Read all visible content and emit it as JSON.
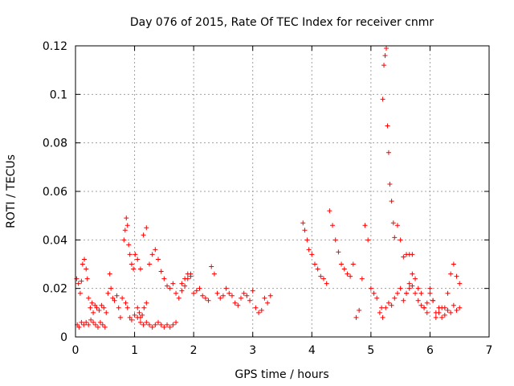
{
  "chart_data": {
    "type": "scatter",
    "title": "Day 076 of 2015, Rate Of TEC Index for receiver cnmr",
    "xlabel": "GPS time / hours",
    "ylabel": "ROTI / TECUs",
    "xlim": [
      0,
      7
    ],
    "ylim": [
      0,
      0.12
    ],
    "xticks": [
      "0",
      "1",
      "2",
      "3",
      "4",
      "5",
      "6",
      "7"
    ],
    "yticks": [
      "0",
      "0.02",
      "0.04",
      "0.06",
      "0.08",
      "0.1",
      "0.12"
    ],
    "grid": true,
    "marker": "+",
    "color": "#ff0000",
    "series": [
      {
        "name": "ROTI",
        "x": [
          0.02,
          0.05,
          0.08,
          0.1,
          0.12,
          0.15,
          0.18,
          0.2,
          0.22,
          0.25,
          0.28,
          0.3,
          0.33,
          0.36,
          0.4,
          0.44,
          0.48,
          0.52,
          0.03,
          0.06,
          0.1,
          0.14,
          0.18,
          0.22,
          0.26,
          0.3,
          0.34,
          0.38,
          0.42,
          0.46,
          0.5,
          0.55,
          0.58,
          0.6,
          0.63,
          0.66,
          0.7,
          0.73,
          0.76,
          0.79,
          0.82,
          0.84,
          0.86,
          0.88,
          0.9,
          0.92,
          0.95,
          0.98,
          1.01,
          1.05,
          1.1,
          1.15,
          1.2,
          1.05,
          1.08,
          1.1,
          1.13,
          1.16,
          1.2,
          1.25,
          1.3,
          1.35,
          1.4,
          1.45,
          1.5,
          1.55,
          1.6,
          1.65,
          1.7,
          1.75,
          1.8,
          1.85,
          1.9,
          1.95,
          0.85,
          0.88,
          0.92,
          0.95,
          1.0,
          1.05,
          1.1,
          1.15,
          1.2,
          1.25,
          1.3,
          1.35,
          1.4,
          1.45,
          1.5,
          1.55,
          1.6,
          1.65,
          1.7,
          1.8,
          1.85,
          1.9,
          1.95,
          2.0,
          2.05,
          2.1,
          2.15,
          2.2,
          2.25,
          2.3,
          2.35,
          2.4,
          2.45,
          2.5,
          2.55,
          2.6,
          2.65,
          2.7,
          2.75,
          2.8,
          2.85,
          2.9,
          2.95,
          3.0,
          3.05,
          3.1,
          3.15,
          3.2,
          3.25,
          3.3,
          3.85,
          3.88,
          3.92,
          3.95,
          4.0,
          4.05,
          4.1,
          4.15,
          4.2,
          4.25,
          4.3,
          4.35,
          4.4,
          4.45,
          4.5,
          4.55,
          4.6,
          4.65,
          4.7,
          4.75,
          4.8,
          4.85,
          4.9,
          4.95,
          5.0,
          5.05,
          5.1,
          5.15,
          5.18,
          5.2,
          5.22,
          5.24,
          5.26,
          5.28,
          5.3,
          5.32,
          5.35,
          5.38,
          5.4,
          5.45,
          5.5,
          5.55,
          5.6,
          5.65,
          5.7,
          5.2,
          5.25,
          5.3,
          5.35,
          5.4,
          5.45,
          5.5,
          5.55,
          5.6,
          5.65,
          5.7,
          5.75,
          5.8,
          5.85,
          5.9,
          5.95,
          6.0,
          6.05,
          6.1,
          6.15,
          6.2,
          6.25,
          6.3,
          6.35,
          6.4,
          6.45,
          6.5,
          5.6,
          5.65,
          5.7,
          5.75,
          5.8,
          5.85,
          5.9,
          5.95,
          6.0,
          6.05,
          6.1,
          6.15,
          6.2,
          6.25,
          6.3,
          6.35,
          6.4,
          6.45,
          6.5
        ],
        "y": [
          0.024,
          0.022,
          0.018,
          0.023,
          0.03,
          0.032,
          0.028,
          0.024,
          0.016,
          0.012,
          0.014,
          0.01,
          0.013,
          0.012,
          0.011,
          0.013,
          0.012,
          0.01,
          0.005,
          0.004,
          0.006,
          0.005,
          0.006,
          0.005,
          0.007,
          0.006,
          0.005,
          0.004,
          0.006,
          0.005,
          0.004,
          0.018,
          0.026,
          0.02,
          0.016,
          0.015,
          0.017,
          0.012,
          0.008,
          0.016,
          0.04,
          0.044,
          0.049,
          0.046,
          0.038,
          0.034,
          0.03,
          0.028,
          0.034,
          0.032,
          0.028,
          0.042,
          0.045,
          0.012,
          0.01,
          0.008,
          0.009,
          0.012,
          0.014,
          0.03,
          0.034,
          0.036,
          0.032,
          0.027,
          0.024,
          0.021,
          0.02,
          0.022,
          0.018,
          0.016,
          0.019,
          0.021,
          0.024,
          0.026,
          0.014,
          0.012,
          0.008,
          0.007,
          0.009,
          0.008,
          0.006,
          0.005,
          0.006,
          0.005,
          0.004,
          0.005,
          0.006,
          0.005,
          0.004,
          0.005,
          0.004,
          0.005,
          0.006,
          0.022,
          0.024,
          0.026,
          0.025,
          0.018,
          0.019,
          0.02,
          0.017,
          0.016,
          0.015,
          0.029,
          0.026,
          0.018,
          0.016,
          0.017,
          0.02,
          0.018,
          0.017,
          0.014,
          0.013,
          0.016,
          0.018,
          0.017,
          0.015,
          0.019,
          0.012,
          0.01,
          0.011,
          0.016,
          0.014,
          0.017,
          0.047,
          0.044,
          0.04,
          0.036,
          0.034,
          0.03,
          0.028,
          0.025,
          0.024,
          0.022,
          0.052,
          0.046,
          0.04,
          0.035,
          0.03,
          0.028,
          0.026,
          0.025,
          0.03,
          0.008,
          0.011,
          0.024,
          0.046,
          0.04,
          0.02,
          0.018,
          0.016,
          0.01,
          0.012,
          0.098,
          0.112,
          0.116,
          0.119,
          0.087,
          0.076,
          0.063,
          0.056,
          0.047,
          0.041,
          0.046,
          0.04,
          0.033,
          0.034,
          0.034,
          0.034,
          0.008,
          0.012,
          0.014,
          0.013,
          0.016,
          0.018,
          0.02,
          0.015,
          0.018,
          0.022,
          0.026,
          0.024,
          0.02,
          0.018,
          0.012,
          0.01,
          0.018,
          0.015,
          0.008,
          0.01,
          0.012,
          0.012,
          0.018,
          0.026,
          0.03,
          0.025,
          0.022,
          0.018,
          0.02,
          0.021,
          0.018,
          0.015,
          0.013,
          0.012,
          0.014,
          0.02,
          0.015,
          0.01,
          0.012,
          0.008,
          0.009,
          0.011,
          0.01,
          0.013,
          0.011,
          0.012
        ]
      }
    ]
  }
}
